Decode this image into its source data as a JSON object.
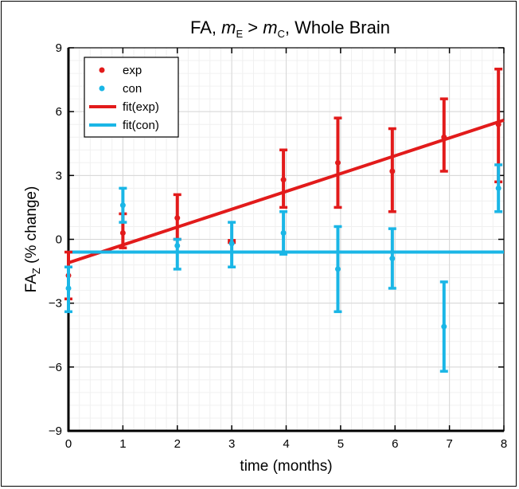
{
  "chart_data": {
    "type": "scatter",
    "title": {
      "parts": [
        {
          "text": "FA, ",
          "italic": false,
          "sub": false
        },
        {
          "text": "m",
          "italic": true,
          "sub": false
        },
        {
          "text": "E",
          "italic": false,
          "sub": true
        },
        {
          "text": " > ",
          "italic": false,
          "sub": false
        },
        {
          "text": "m",
          "italic": true,
          "sub": false
        },
        {
          "text": "C",
          "italic": false,
          "sub": true
        },
        {
          "text": ", Whole Brain",
          "italic": false,
          "sub": false
        }
      ]
    },
    "xlabel": "time (months)",
    "ylabel": {
      "main": "FA",
      "sub": "Z",
      "rest": " (% change)"
    },
    "xlim": [
      0,
      8
    ],
    "ylim": [
      -9,
      9
    ],
    "xticks": [
      0,
      1,
      2,
      3,
      4,
      5,
      6,
      7,
      8
    ],
    "yticks": [
      -9,
      -6,
      -3,
      0,
      3,
      6,
      9
    ],
    "ytick_labels": [
      "−9",
      "−6",
      "−3",
      "0",
      "3",
      "6",
      "9"
    ],
    "grid": true,
    "legend_position": "top-left",
    "series": [
      {
        "name": "exp",
        "color": "#e21b1b",
        "points": [
          {
            "x": 0,
            "y": -1.7,
            "lo": -2.8,
            "hi": -0.6
          },
          {
            "x": 1,
            "y": 0.3,
            "lo": -0.4,
            "hi": 1.2
          },
          {
            "x": 2,
            "y": 1.0,
            "lo": 0.0,
            "hi": 2.1
          },
          {
            "x": 3,
            "y": -0.1,
            "lo": -0.15,
            "hi": -0.05
          },
          {
            "x": 3.95,
            "y": 2.8,
            "lo": 1.5,
            "hi": 4.2
          },
          {
            "x": 4.95,
            "y": 3.6,
            "lo": 1.5,
            "hi": 5.7
          },
          {
            "x": 5.95,
            "y": 3.2,
            "lo": 1.3,
            "hi": 5.2
          },
          {
            "x": 6.9,
            "y": 4.8,
            "lo": 3.2,
            "hi": 6.6
          },
          {
            "x": 7.9,
            "y": 5.4,
            "lo": 2.7,
            "hi": 8.0
          }
        ]
      },
      {
        "name": "con",
        "color": "#1ab6e6",
        "points": [
          {
            "x": 0,
            "y": -2.3,
            "lo": -3.4,
            "hi": -1.3
          },
          {
            "x": 1,
            "y": 1.6,
            "lo": 0.8,
            "hi": 2.4
          },
          {
            "x": 2,
            "y": -0.3,
            "lo": -1.4,
            "hi": 0.0
          },
          {
            "x": 3,
            "y": -0.2,
            "lo": -1.3,
            "hi": 0.8
          },
          {
            "x": 3.95,
            "y": 0.3,
            "lo": -0.7,
            "hi": 1.3
          },
          {
            "x": 4.95,
            "y": -1.4,
            "lo": -3.4,
            "hi": 0.6
          },
          {
            "x": 5.95,
            "y": -0.9,
            "lo": -2.3,
            "hi": 0.5
          },
          {
            "x": 6.9,
            "y": -4.1,
            "lo": -6.2,
            "hi": -2.0
          },
          {
            "x": 7.9,
            "y": 2.4,
            "lo": 1.3,
            "hi": 3.5
          }
        ]
      }
    ],
    "fits": [
      {
        "name": "fit(exp)",
        "color": "#e21b1b",
        "x": [
          0,
          8
        ],
        "y": [
          -1.1,
          5.6
        ]
      },
      {
        "name": "fit(con)",
        "color": "#1ab6e6",
        "x": [
          0,
          8
        ],
        "y": [
          -0.6,
          -0.6
        ]
      }
    ]
  }
}
